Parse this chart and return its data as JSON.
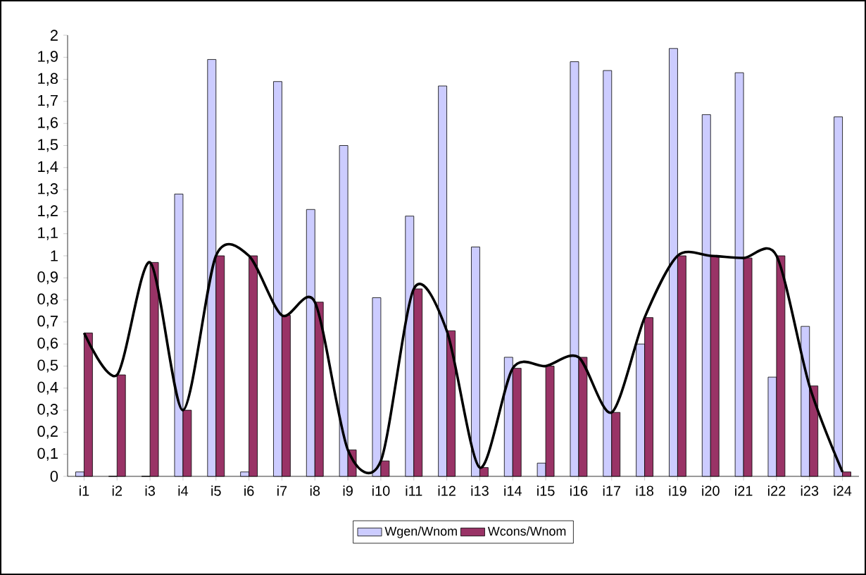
{
  "chart_data": {
    "type": "bar",
    "categories": [
      "i1",
      "i2",
      "i3",
      "i4",
      "i5",
      "i6",
      "i7",
      "i8",
      "i9",
      "i10",
      "i11",
      "i12",
      "i13",
      "i14",
      "i15",
      "i16",
      "i17",
      "i18",
      "i19",
      "i20",
      "i21",
      "i22",
      "i23",
      "i24"
    ],
    "series": [
      {
        "name": "Wgen/Wnom",
        "color": "#ccccff",
        "values": [
          0.02,
          0,
          0,
          1.28,
          1.89,
          0.02,
          1.79,
          1.21,
          1.5,
          0.81,
          1.18,
          1.77,
          1.04,
          0.54,
          0.06,
          1.88,
          1.84,
          0.6,
          1.94,
          1.64,
          1.83,
          0.45,
          0.68,
          1.63
        ]
      },
      {
        "name": "Wcons/Wnom",
        "color": "#993366",
        "values": [
          0.65,
          0.46,
          0.97,
          0.3,
          1.0,
          1.0,
          0.73,
          0.79,
          0.12,
          0.07,
          0.85,
          0.66,
          0.04,
          0.49,
          0.5,
          0.54,
          0.29,
          0.72,
          1.0,
          1.0,
          0.99,
          1.0,
          0.41,
          0.02
        ]
      },
      {
        "type": "line",
        "color": "#000000",
        "values": [
          0.65,
          0.46,
          0.97,
          0.3,
          1.0,
          1.0,
          0.73,
          0.79,
          0.12,
          0.07,
          0.85,
          0.66,
          0.04,
          0.49,
          0.5,
          0.54,
          0.29,
          0.72,
          1.0,
          1.0,
          0.99,
          1.0,
          0.41,
          0.02
        ]
      }
    ],
    "ylim": [
      0,
      2
    ],
    "yticks": [
      0,
      {
        "value": 0.1,
        "label": "0,1"
      },
      {
        "value": 0.2,
        "label": "0,2"
      },
      {
        "value": 0.3,
        "label": "0,3"
      },
      {
        "value": 0.4,
        "label": "0,4"
      },
      {
        "value": 0.5,
        "label": "0,5"
      },
      {
        "value": 0.6,
        "label": "0,6"
      },
      {
        "value": 0.7,
        "label": "0,7"
      },
      {
        "value": 0.8,
        "label": "0,8"
      },
      {
        "value": 0.9,
        "label": "0,9"
      },
      1,
      {
        "value": 1.1,
        "label": "1,1"
      },
      {
        "value": 1.2,
        "label": "1,2"
      },
      {
        "value": 1.3,
        "label": "1,3"
      },
      {
        "value": 1.4,
        "label": "1,4"
      },
      {
        "value": 1.5,
        "label": "1,5"
      },
      {
        "value": 1.6,
        "label": "1,6"
      },
      {
        "value": 1.7,
        "label": "1,7"
      },
      {
        "value": 1.8,
        "label": "1,8"
      },
      {
        "value": 1.9,
        "label": "1,9"
      },
      2
    ],
    "grid": false,
    "legend": "bottom",
    "marker": "none",
    "line_style": "solid"
  }
}
